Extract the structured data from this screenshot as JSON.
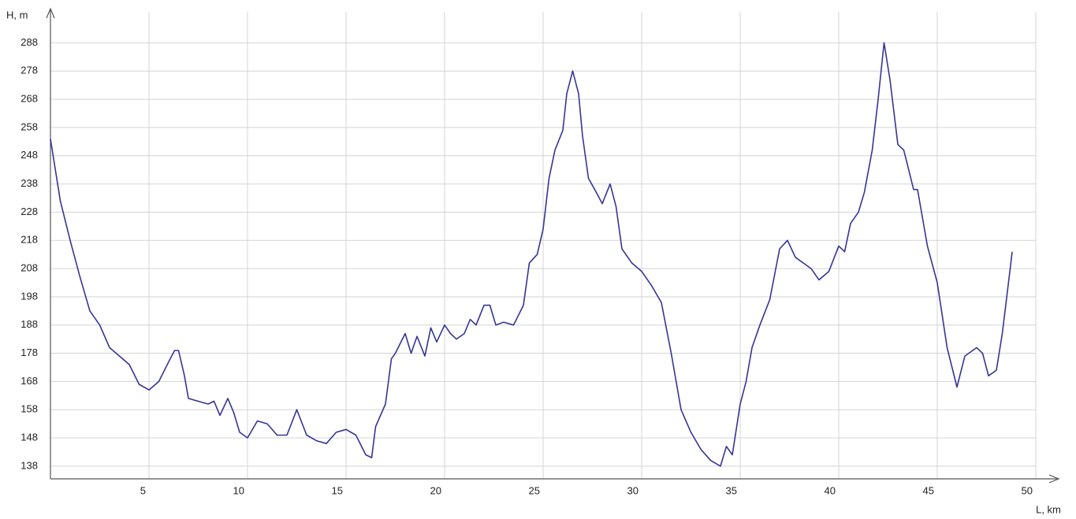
{
  "chart_data": {
    "type": "line",
    "y_label": "H, m",
    "x_label": "L, km",
    "color": "#353596",
    "grid": true,
    "xlim": [
      0,
      51
    ],
    "ylim": [
      133.5,
      299
    ],
    "xticks": [
      5,
      10,
      15,
      20,
      25,
      30,
      35,
      40,
      45,
      50
    ],
    "yticks": [
      138,
      148,
      158,
      168,
      178,
      188,
      198,
      208,
      218,
      228,
      238,
      248,
      258,
      268,
      278,
      288
    ],
    "x": [
      0,
      0.5,
      1,
      1.5,
      2,
      2.5,
      3,
      3.5,
      4,
      4.5,
      5,
      5.5,
      6,
      6.3,
      6.5,
      6.8,
      7,
      7.5,
      8,
      8.3,
      8.6,
      9,
      9.3,
      9.6,
      10,
      10.5,
      11,
      11.5,
      12,
      12.5,
      13,
      13.5,
      14,
      14.5,
      15,
      15.5,
      16,
      16.3,
      16.5,
      17,
      17.3,
      17.5,
      18,
      18.3,
      18.6,
      19,
      19.3,
      19.6,
      20,
      20.3,
      20.6,
      21,
      21.3,
      21.6,
      22,
      22.3,
      22.6,
      23,
      23.5,
      24,
      24.3,
      24.7,
      25,
      25.3,
      25.6,
      26,
      26.2,
      26.5,
      26.8,
      27,
      27.3,
      27.7,
      28,
      28.4,
      28.7,
      29,
      29.5,
      30,
      30.5,
      31,
      31.5,
      32,
      32.5,
      33,
      33.5,
      34,
      34.3,
      34.6,
      35,
      35.3,
      35.6,
      36,
      36.5,
      37,
      37.4,
      37.8,
      38.2,
      38.6,
      39,
      39.5,
      40,
      40.3,
      40.6,
      41,
      41.3,
      41.7,
      42,
      42.3,
      42.6,
      43,
      43.3,
      43.8,
      44,
      44.5,
      45,
      45.5,
      46,
      46.4,
      47,
      47.3,
      47.6,
      48,
      48.3,
      48.7,
      48.8
    ],
    "values": [
      254,
      232,
      218,
      205,
      193,
      188,
      180,
      177,
      174,
      167,
      165,
      168,
      175,
      179,
      179,
      170,
      162,
      161,
      160,
      161,
      156,
      162,
      157,
      150,
      148,
      154,
      153,
      149,
      149,
      158,
      149,
      147,
      146,
      150,
      151,
      149,
      142,
      141,
      152,
      160,
      176,
      178,
      185,
      178,
      184,
      177,
      187,
      182,
      188,
      185,
      183,
      185,
      190,
      188,
      195,
      195,
      188,
      189,
      188,
      195,
      210,
      213,
      222,
      240,
      250,
      257,
      270,
      278,
      270,
      255,
      240,
      235,
      231,
      238,
      230,
      215,
      210,
      207,
      202,
      196,
      178,
      158,
      150,
      144,
      140,
      138,
      145,
      142,
      160,
      168,
      180,
      188,
      197,
      215,
      218,
      212,
      210,
      208,
      204,
      207,
      216,
      214,
      224,
      228,
      235,
      250,
      268,
      288,
      275,
      252,
      250,
      236,
      236,
      216,
      203,
      180,
      166,
      177,
      180,
      178,
      170,
      172,
      185,
      208,
      214
    ]
  }
}
